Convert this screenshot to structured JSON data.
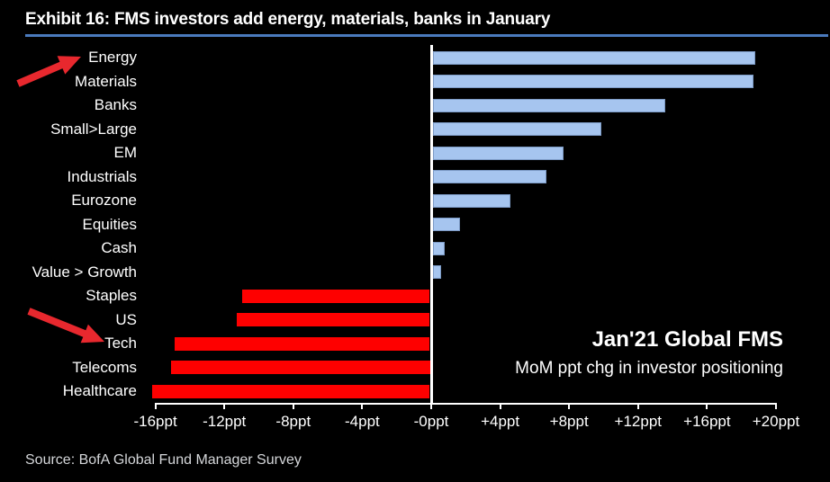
{
  "header": {
    "title": "Exhibit 16: FMS investors add energy, materials, banks in January"
  },
  "colors": {
    "background": "#000000",
    "divider_blue": "#4a7abc",
    "positive_bar": "#a6c5ef",
    "positive_bar_border": "#7b99c4",
    "negative_bar": "#fe0000",
    "arrow_red": "#e8282e",
    "axis_white": "#ffffff",
    "text_white": "#ffffff",
    "source_grey": "#d5d7da"
  },
  "chart_data": {
    "type": "bar",
    "orientation": "horizontal",
    "title": "Exhibit 16: FMS investors add energy, materials, banks in January",
    "categories": [
      "Energy",
      "Materials",
      "Banks",
      "Small>Large",
      "EM",
      "Industrials",
      "Eurozone",
      "Equities",
      "Cash",
      "Value > Growth",
      "Staples",
      "US",
      "Tech",
      "Telecoms",
      "Healthcare"
    ],
    "values": [
      18.7,
      18.6,
      13.5,
      9.8,
      7.6,
      6.6,
      4.5,
      1.6,
      0.7,
      0.5,
      -10.9,
      -11.2,
      -14.8,
      -15.0,
      -16.1
    ],
    "xlabel": "MoM ppt chg in investor positioning",
    "xlim": [
      -16,
      20
    ],
    "grid": false,
    "legend": false,
    "ticks": [
      {
        "value": -16,
        "label": "-16ppt"
      },
      {
        "value": -12,
        "label": "-12ppt"
      },
      {
        "value": -8,
        "label": "-8ppt"
      },
      {
        "value": -4,
        "label": "-4ppt"
      },
      {
        "value": 0,
        "label": "-0ppt"
      },
      {
        "value": 4,
        "label": "+4ppt"
      },
      {
        "value": 8,
        "label": "+8ppt"
      },
      {
        "value": 12,
        "label": "+12ppt"
      },
      {
        "value": 16,
        "label": "+16ppt"
      },
      {
        "value": 20,
        "label": "+20ppt"
      }
    ]
  },
  "annotation": {
    "line1": "Jan'21 Global FMS",
    "line2": "MoM ppt chg in investor positioning"
  },
  "arrows": [
    {
      "target": "Energy",
      "from": [
        20,
        93
      ],
      "to": [
        90,
        63
      ]
    },
    {
      "target": "Tech",
      "from": [
        32,
        346
      ],
      "to": [
        116,
        380
      ]
    }
  ],
  "source": "Source: BofA Global Fund Manager Survey"
}
